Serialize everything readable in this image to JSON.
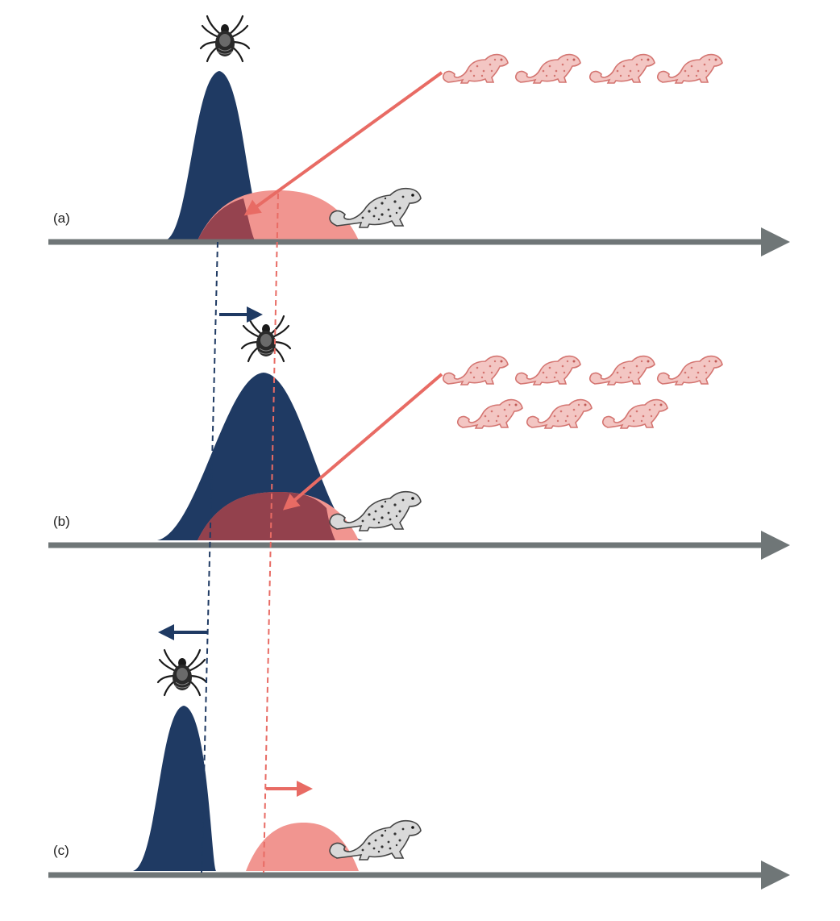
{
  "colors": {
    "tick": "#1f3a63",
    "host": "#e86b64",
    "host_fill": "#f19590",
    "overlap": "#8b3a48",
    "axis": "#6f7677",
    "host_icon": "#d88886",
    "squirrel_icon": "#555555",
    "background": "#ffffff"
  },
  "icons": {
    "tick": "tick-icon",
    "host_infected": "infected-squirrel-icon",
    "host": "squirrel-icon"
  },
  "panels": [
    {
      "label": "(a)",
      "tick_shift": "none",
      "host_shift": "none",
      "infected_hosts": 4
    },
    {
      "label": "(b)",
      "tick_shift": "later",
      "host_shift": "none",
      "infected_hosts": 7
    },
    {
      "label": "(c)",
      "tick_shift": "earlier",
      "host_shift": "later",
      "infected_hosts": 0
    }
  ]
}
